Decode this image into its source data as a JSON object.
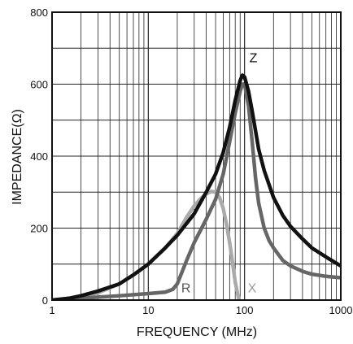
{
  "chart_data": {
    "type": "line",
    "title": "",
    "xlabel": "FREQUENCY (MHz)",
    "ylabel": "IMPEDANCE(Ω)",
    "x_scale": "log",
    "xlim": [
      1,
      1000
    ],
    "ylim": [
      0,
      800
    ],
    "x_ticks": [
      1,
      10,
      100,
      1000
    ],
    "x_tick_labels": [
      "1",
      "10",
      "100",
      "1000"
    ],
    "y_ticks": [
      0,
      200,
      400,
      600,
      800
    ],
    "y_tick_labels": [
      "0",
      "200",
      "400",
      "600",
      "800"
    ],
    "grid": true,
    "legend": "none",
    "series": [
      {
        "name": "Z",
        "color": "#111111",
        "x": [
          1,
          1.5,
          2,
          3,
          5,
          7,
          10,
          15,
          20,
          30,
          40,
          50,
          60,
          70,
          80,
          90,
          95,
          100,
          110,
          120,
          140,
          160,
          200,
          250,
          300,
          400,
          500,
          700,
          1000
        ],
        "y": [
          0,
          5,
          12,
          25,
          45,
          70,
          100,
          145,
          180,
          240,
          300,
          350,
          410,
          480,
          555,
          610,
          625,
          620,
          580,
          525,
          420,
          360,
          285,
          235,
          205,
          170,
          145,
          120,
          95
        ]
      },
      {
        "name": "R",
        "color": "#666666",
        "x": [
          1,
          2,
          5,
          10,
          15,
          18,
          20,
          25,
          30,
          40,
          50,
          60,
          70,
          80,
          90,
          95,
          100,
          110,
          120,
          130,
          140,
          160,
          180,
          200,
          250,
          300,
          400,
          500,
          700,
          1000
        ],
        "y": [
          0,
          5,
          12,
          18,
          22,
          30,
          45,
          110,
          160,
          225,
          280,
          350,
          440,
          520,
          580,
          600,
          600,
          540,
          440,
          340,
          270,
          200,
          165,
          145,
          110,
          95,
          80,
          72,
          66,
          62
        ]
      },
      {
        "name": "X",
        "color": "#aaaaaa",
        "x": [
          1,
          2,
          3,
          5,
          7,
          10,
          15,
          20,
          25,
          30,
          35,
          40,
          45,
          50,
          55,
          60,
          65,
          70,
          75,
          80,
          85,
          88
        ],
        "y": [
          0,
          8,
          20,
          45,
          70,
          100,
          145,
          185,
          230,
          262,
          282,
          295,
          302,
          300,
          285,
          255,
          210,
          160,
          105,
          50,
          15,
          0
        ]
      }
    ],
    "curve_labels": [
      {
        "text": "Z",
        "series": "Z"
      },
      {
        "text": "R",
        "series": "R"
      },
      {
        "text": "X",
        "series": "X"
      }
    ]
  }
}
